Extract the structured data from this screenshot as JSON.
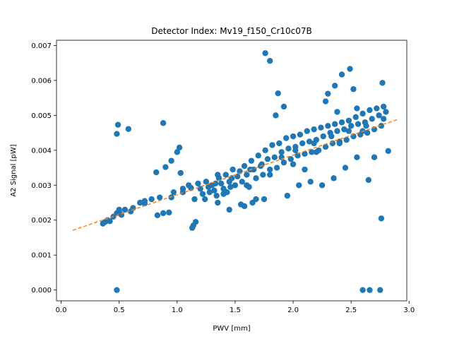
{
  "chart_data": {
    "type": "scatter",
    "title": "Detector Index: Mv19_f150_Cr10c07B",
    "xlabel": "PWV [mm]",
    "ylabel": "A2 Signal [pW]",
    "xlim": [
      -0.04,
      2.98
    ],
    "ylim": [
      -0.00031,
      0.00715
    ],
    "xticks": [
      0.0,
      0.5,
      1.0,
      1.5,
      2.0,
      2.5,
      3.0
    ],
    "xtick_labels": [
      "0.0",
      "0.5",
      "1.0",
      "1.5",
      "2.0",
      "2.5",
      "3.0"
    ],
    "yticks": [
      0.0,
      0.001,
      0.002,
      0.003,
      0.004,
      0.005,
      0.006,
      0.007
    ],
    "ytick_labels": [
      "0.000",
      "0.001",
      "0.002",
      "0.003",
      "0.004",
      "0.005",
      "0.006",
      "0.007"
    ],
    "grid": false,
    "colors": {
      "points": "#1f77b4",
      "fit": "#ff7f0e"
    },
    "fit_line": {
      "x": [
        0.1,
        2.9
      ],
      "y": [
        0.00171,
        0.00488
      ],
      "style": "dashed"
    },
    "x": [
      0.36,
      0.38,
      0.4,
      0.42,
      0.45,
      0.48,
      0.5,
      0.52,
      0.55,
      0.6,
      0.48,
      0.49,
      0.48,
      0.58,
      0.62,
      0.68,
      0.72,
      0.78,
      0.85,
      0.88,
      0.9,
      0.82,
      0.83,
      0.93,
      0.95,
      0.97,
      1.0,
      1.02,
      1.03,
      1.05,
      1.1,
      1.13,
      1.14,
      1.16,
      1.18,
      1.2,
      1.22,
      1.24,
      1.25,
      1.27,
      1.28,
      1.3,
      1.32,
      1.34,
      1.36,
      1.38,
      1.4,
      1.42,
      1.43,
      1.45,
      1.46,
      1.48,
      1.5,
      1.52,
      1.54,
      1.56,
      1.58,
      1.6,
      1.62,
      1.64,
      1.66,
      1.68,
      1.7,
      1.72,
      1.74,
      1.76,
      1.78,
      1.8,
      1.82,
      1.84,
      1.86,
      1.88,
      1.9,
      1.92,
      1.94,
      1.96,
      1.98,
      2.0,
      2.02,
      2.04,
      2.06,
      2.08,
      2.1,
      2.12,
      2.14,
      2.16,
      2.18,
      2.2,
      2.22,
      2.24,
      2.26,
      2.28,
      2.3,
      2.32,
      2.34,
      2.36,
      2.38,
      2.4,
      2.42,
      2.44,
      2.46,
      2.48,
      2.5,
      2.52,
      2.54,
      2.56,
      2.58,
      2.6,
      2.62,
      2.64,
      2.66,
      2.68,
      2.7,
      2.72,
      2.74,
      2.76,
      2.78,
      2.8,
      1.76,
      1.8,
      2.49,
      2.42,
      2.3,
      2.52,
      2.77,
      2.36,
      1.87,
      1.92,
      2.1,
      2.6,
      2.66,
      2.75,
      2.76,
      0.5,
      1.05,
      1.15,
      1.35,
      1.45,
      1.55,
      1.65,
      1.75,
      1.95,
      2.05,
      2.15,
      2.25,
      2.35,
      2.45,
      2.55,
      2.65,
      2.82,
      1.25,
      1.35,
      1.58,
      1.68,
      1.85,
      2.28,
      2.38,
      2.55,
      2.7,
      0.72,
      0.88,
      0.95,
      1.12,
      1.33,
      1.47,
      1.63,
      1.73,
      1.9,
      2.02,
      2.18,
      2.33,
      2.48,
      2.63,
      2.78,
      1.4,
      1.6,
      1.8,
      2.0,
      2.2,
      2.4,
      2.6
    ],
    "y": [
      0.0019,
      0.00195,
      0.002,
      0.00197,
      0.0021,
      0.0022,
      0.00225,
      0.00215,
      0.0023,
      0.00225,
      0.00447,
      0.00473,
      0.0,
      0.00461,
      0.00235,
      0.0025,
      0.00255,
      0.0026,
      0.00265,
      0.00478,
      0.00352,
      0.00337,
      0.00214,
      0.00222,
      0.0037,
      0.0028,
      0.00395,
      0.00408,
      0.00335,
      0.0029,
      0.003,
      0.00178,
      0.00185,
      0.00195,
      0.00305,
      0.0029,
      0.00275,
      0.0026,
      0.0031,
      0.00295,
      0.0028,
      0.003,
      0.00285,
      0.0027,
      0.0032,
      0.00305,
      0.0029,
      0.0033,
      0.0028,
      0.0031,
      0.00295,
      0.00345,
      0.003,
      0.00325,
      0.0034,
      0.0031,
      0.00355,
      0.0033,
      0.00295,
      0.0037,
      0.00345,
      0.0032,
      0.00385,
      0.00355,
      0.0033,
      0.004,
      0.00375,
      0.00345,
      0.00415,
      0.0038,
      0.0035,
      0.0042,
      0.00395,
      0.00365,
      0.00435,
      0.00405,
      0.00375,
      0.0044,
      0.0041,
      0.00385,
      0.00445,
      0.0042,
      0.0039,
      0.00455,
      0.00425,
      0.00395,
      0.0046,
      0.0043,
      0.004,
      0.00465,
      0.0044,
      0.0041,
      0.0047,
      0.0045,
      0.0042,
      0.00475,
      0.00455,
      0.00425,
      0.0048,
      0.0046,
      0.0043,
      0.00485,
      0.0047,
      0.0044,
      0.00495,
      0.00475,
      0.00445,
      0.00505,
      0.0048,
      0.0045,
      0.00515,
      0.0049,
      0.0046,
      0.0052,
      0.005,
      0.0047,
      0.00525,
      0.0051,
      0.00678,
      0.00656,
      0.00633,
      0.00617,
      0.00562,
      0.00575,
      0.00593,
      0.00585,
      0.00563,
      0.00525,
      0.00345,
      0.0,
      0.0,
      0.0,
      0.00205,
      0.0023,
      0.0028,
      0.0026,
      0.0025,
      0.0023,
      0.00245,
      0.0025,
      0.0026,
      0.0027,
      0.003,
      0.0031,
      0.003,
      0.0032,
      0.0035,
      0.0038,
      0.00315,
      0.00398,
      0.0031,
      0.0033,
      0.0024,
      0.0026,
      0.005,
      0.0054,
      0.0051,
      0.0052,
      0.0038,
      0.00248,
      0.0022,
      0.00265,
      0.00292,
      0.00305,
      0.0032,
      0.00345,
      0.0036,
      0.0038,
      0.004,
      0.0042,
      0.0044,
      0.00455,
      0.0047,
      0.0049,
      0.00275,
      0.003,
      0.0033,
      0.0036,
      0.00395,
      0.0042,
      0.00455
    ]
  }
}
